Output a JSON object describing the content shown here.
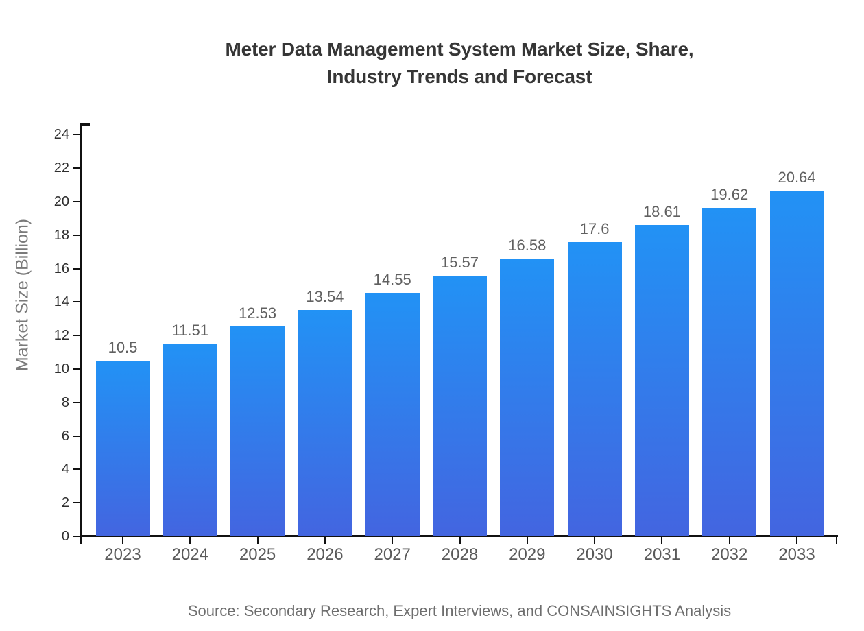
{
  "chart_data": {
    "type": "bar",
    "title_lines": [
      "Meter Data Management System Market Size, Share,",
      "Industry Trends and Forecast"
    ],
    "xlabel": "",
    "ylabel": "Market Size (Billion)",
    "categories": [
      "2023",
      "2024",
      "2025",
      "2026",
      "2027",
      "2028",
      "2029",
      "2030",
      "2031",
      "2032",
      "2033"
    ],
    "values": [
      10.5,
      11.51,
      12.53,
      13.54,
      14.55,
      15.57,
      16.58,
      17.6,
      18.61,
      19.62,
      20.64
    ],
    "ylim": [
      0,
      24
    ],
    "yticks": [
      0,
      2,
      4,
      6,
      8,
      10,
      12,
      14,
      16,
      18,
      20,
      22,
      24
    ],
    "grid": false,
    "legend_position": "none",
    "bar_color_top": "#2292f5",
    "bar_color_bottom": "#4365e0",
    "axis_color": "#111111",
    "source_note": "Source: Secondary Research, Expert Interviews, and CONSAINSIGHTS Analysis"
  }
}
